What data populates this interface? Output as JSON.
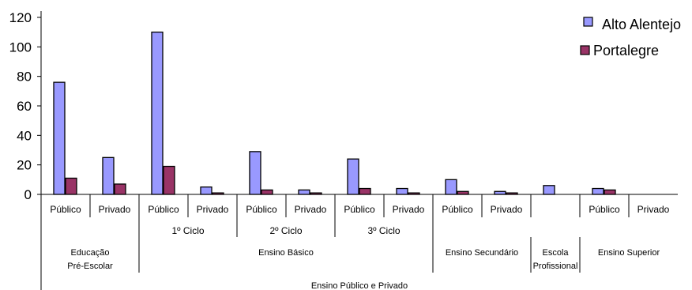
{
  "chart_data": {
    "type": "bar",
    "ylim": [
      0,
      120
    ],
    "yticks": [
      "0",
      "20",
      "40",
      "60",
      "80",
      "100",
      "120"
    ],
    "categories": [
      "Público",
      "Privado",
      "Público",
      "Privado",
      "Público",
      "Privado",
      "Público",
      "Privado",
      "Público",
      "Privado",
      "",
      "Público",
      "Privado"
    ],
    "series": [
      {
        "name": "Alto Alentejo",
        "color": "#9999ff",
        "values": [
          76,
          25,
          110,
          5,
          29,
          3,
          24,
          4,
          10,
          2,
          6,
          4,
          0
        ]
      },
      {
        "name": "Portalegre",
        "color": "#993366",
        "values": [
          11,
          7,
          19,
          1,
          3,
          1,
          4,
          1,
          2,
          1,
          0,
          3,
          0
        ]
      }
    ],
    "level2_groups": [
      {
        "label": "1º Ciclo",
        "span": [
          2,
          3
        ]
      },
      {
        "label": "2º Ciclo",
        "span": [
          4,
          5
        ]
      },
      {
        "label": "3º Ciclo",
        "span": [
          6,
          7
        ]
      }
    ],
    "level3_groups": [
      {
        "line1": "Educação",
        "line2": "Pré-Escolar",
        "span": [
          0,
          1
        ]
      },
      {
        "line1": "Ensino Básico",
        "line2": "",
        "span": [
          2,
          7
        ]
      },
      {
        "line1": "Ensino Secundário",
        "line2": "",
        "span": [
          8,
          9
        ]
      },
      {
        "line1": "Escola",
        "line2": "Profissional",
        "span": [
          10,
          10
        ]
      },
      {
        "line1": "Ensino Superior",
        "line2": "",
        "span": [
          11,
          12
        ]
      }
    ],
    "level4_label": "Ensino Público e Privado",
    "legend_position": "top-right",
    "grid": false
  }
}
